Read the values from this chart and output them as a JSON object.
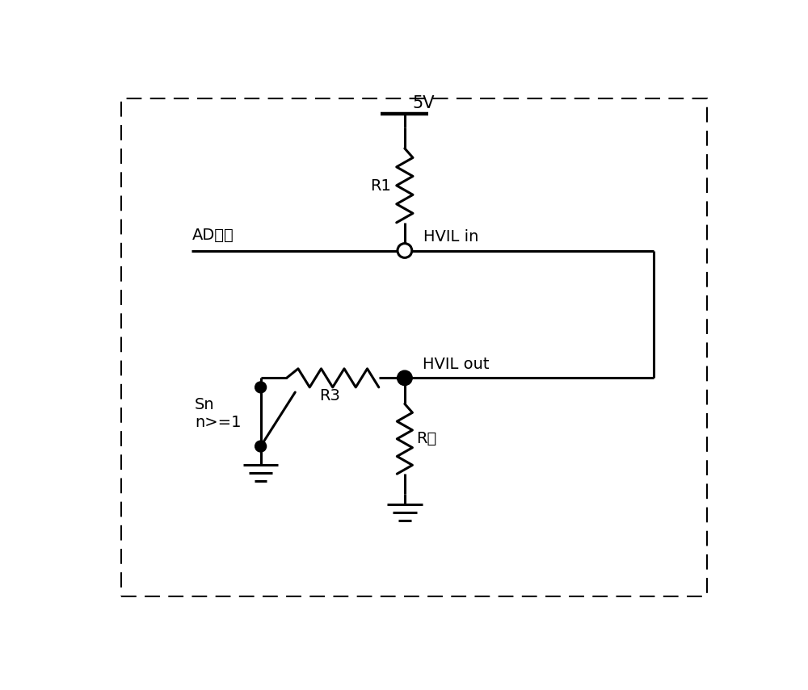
{
  "bg_color": "#ffffff",
  "line_color": "#000000",
  "line_width": 2.2,
  "fig_width": 10.0,
  "fig_height": 8.55,
  "dpi": 100,
  "vcc_label": "5V",
  "r1_label": "R1",
  "r3_label": "R3",
  "r_short_label": "R短",
  "ad_label": "AD采集",
  "hvil_in_label": "HVIL in",
  "hvil_out_label": "HVIL out",
  "sn_label": "Sn\nn>=1",
  "xlim": [
    0,
    10
  ],
  "ylim": [
    0,
    8.55
  ]
}
